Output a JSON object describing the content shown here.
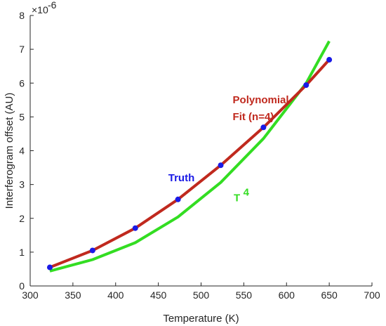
{
  "chart_data": {
    "type": "line",
    "title": "",
    "xlabel": "Temperature (K)",
    "ylabel": "Interferogram offset (AU)",
    "y_multiplier_label": "×10",
    "y_multiplier_exponent": "-6",
    "xlim": [
      300,
      700
    ],
    "ylim": [
      0,
      8
    ],
    "x_ticks": [
      300,
      350,
      400,
      450,
      500,
      550,
      600,
      650,
      700
    ],
    "y_ticks": [
      0,
      1,
      2,
      3,
      4,
      5,
      6,
      7,
      8
    ],
    "grid": false,
    "series": [
      {
        "name": "T",
        "name_superscript": "4",
        "color": "#33dd22",
        "x": [
          323,
          373,
          423,
          473,
          523,
          573,
          623,
          650
        ],
        "y": [
          0.44,
          0.78,
          1.28,
          2.04,
          3.06,
          4.36,
          6.0,
          7.24
        ]
      },
      {
        "name": "Polynomial Fit (n=4)",
        "label_lines": [
          "Polynomial",
          "Fit (n=4)"
        ],
        "color": "#c0291e",
        "x": [
          323,
          373,
          423,
          473,
          523,
          573,
          623,
          650
        ],
        "y": [
          0.55,
          1.05,
          1.71,
          2.56,
          3.57,
          4.69,
          5.94,
          6.69
        ]
      },
      {
        "name": "Truth",
        "color": "#1a1ae6",
        "marker": "circle",
        "x": [
          323,
          373,
          423,
          473,
          523,
          573,
          623,
          650
        ],
        "y": [
          0.55,
          1.05,
          1.71,
          2.56,
          3.57,
          4.69,
          5.94,
          6.69
        ]
      }
    ],
    "annotations": [
      {
        "series": "Polynomial Fit (n=4)",
        "x": 537,
        "y": 5.4
      },
      {
        "series": "Truth",
        "x": 477,
        "y": 3.1
      },
      {
        "series": "T4",
        "x": 542,
        "y": 2.5
      }
    ]
  }
}
